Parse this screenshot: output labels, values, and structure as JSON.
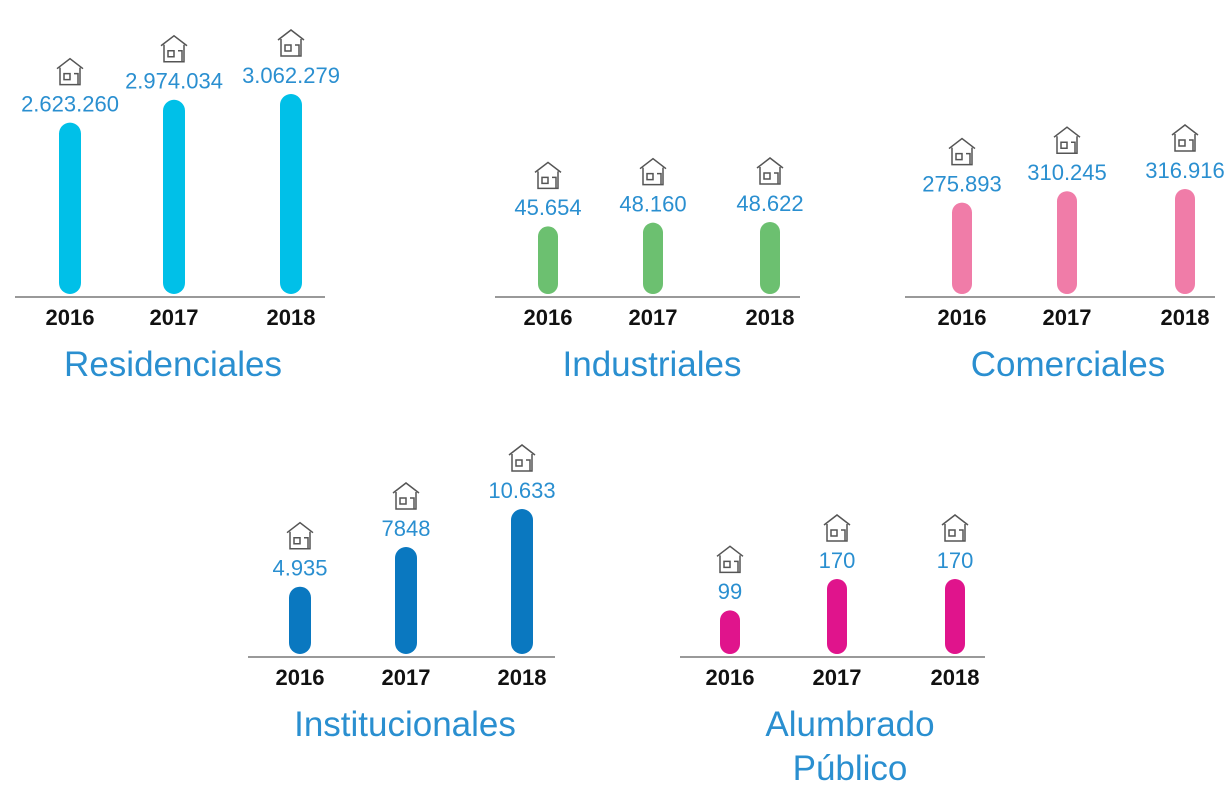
{
  "chart_data": [
    {
      "type": "bar",
      "title": "Residenciales",
      "categories": [
        "2016",
        "2017",
        "2018"
      ],
      "values": [
        2623260,
        2974034,
        3062279
      ],
      "value_labels": [
        "2.623.260",
        "2.974.034",
        "3.062.279"
      ],
      "color": "#00c0e8"
    },
    {
      "type": "bar",
      "title": "Industriales",
      "categories": [
        "2016",
        "2017",
        "2018"
      ],
      "values": [
        45654,
        48160,
        48622
      ],
      "value_labels": [
        "45.654",
        "48.160",
        "48.622"
      ],
      "color": "#6cc070"
    },
    {
      "type": "bar",
      "title": "Comerciales",
      "categories": [
        "2016",
        "2017",
        "2018"
      ],
      "values": [
        275893,
        310245,
        316916
      ],
      "value_labels": [
        "275.893",
        "310.245",
        "316.916"
      ],
      "color": "#f07ca8"
    },
    {
      "type": "bar",
      "title": "Institucionales",
      "categories": [
        "2016",
        "2017",
        "2018"
      ],
      "values": [
        4935,
        7848,
        10633
      ],
      "value_labels": [
        "4.935",
        "7848",
        "10.633"
      ],
      "color": "#0a78c0"
    },
    {
      "type": "bar",
      "title": "Alumbrado Público",
      "categories": [
        "2016",
        "2017",
        "2018"
      ],
      "values": [
        99,
        170,
        170
      ],
      "color": "#e0148c"
    }
  ]
}
